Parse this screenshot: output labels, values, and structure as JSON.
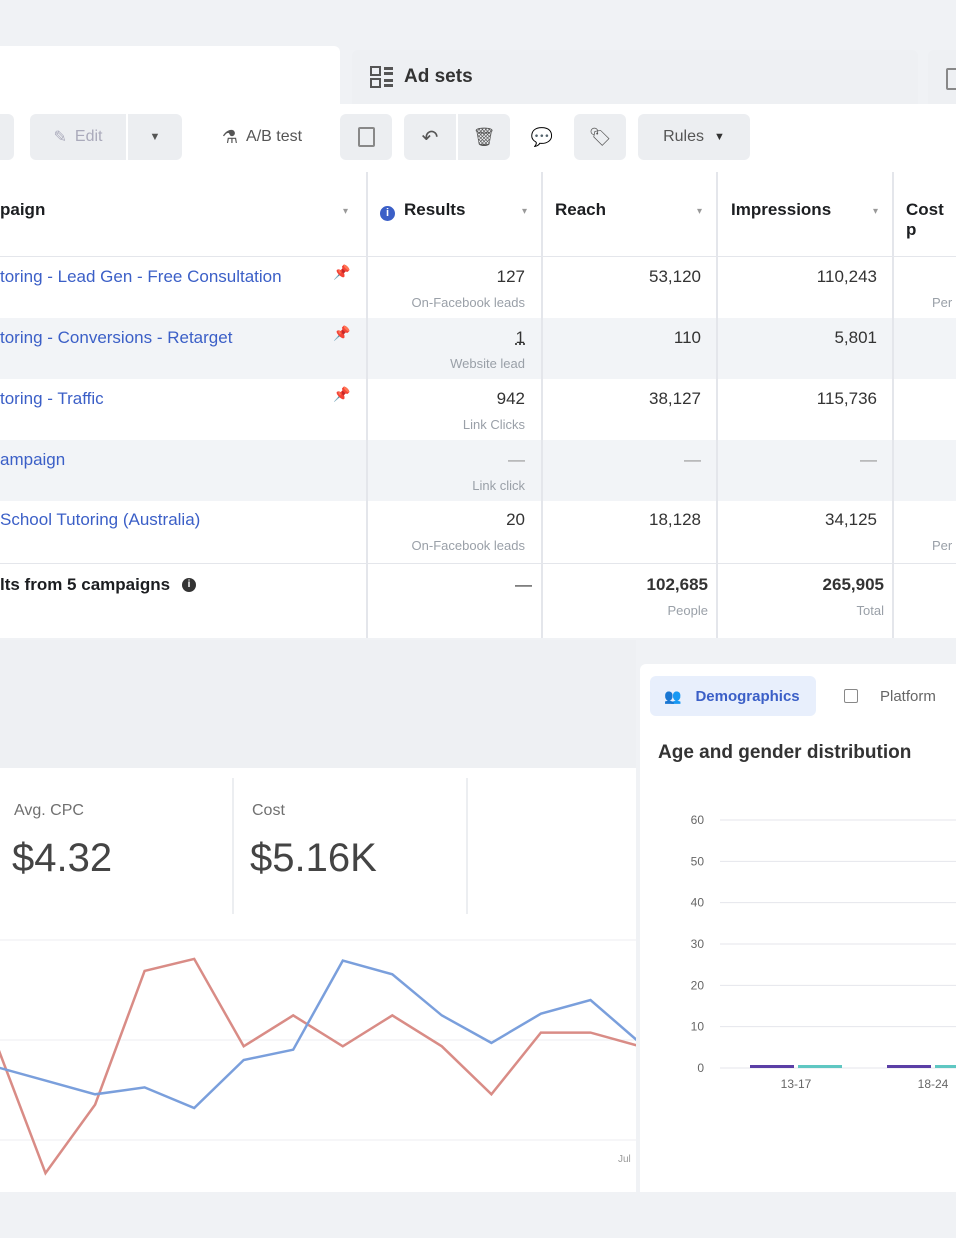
{
  "tabs": {
    "adsets_label": "Ad sets"
  },
  "toolbar": {
    "edit_label": "Edit",
    "ab_test_label": "A/B test",
    "rules_label": "Rules"
  },
  "table": {
    "columns": {
      "campaign": "paign",
      "results": "Results",
      "reach": "Reach",
      "impressions": "Impressions",
      "cost": "Cost p"
    },
    "rows": [
      {
        "campaign": "toring - Lead Gen - Free Consultation",
        "results": "127",
        "results_sub": "On-Facebook leads",
        "reach": "53,120",
        "impressions": "110,243",
        "cost_sub": "Per"
      },
      {
        "campaign": "toring - Conversions - Retarget",
        "results": "1",
        "results_sub": "Website lead",
        "reach": "110",
        "impressions": "5,801",
        "cost_sub": ""
      },
      {
        "campaign": "toring - Traffic",
        "results": "942",
        "results_sub": "Link Clicks",
        "reach": "38,127",
        "impressions": "115,736",
        "cost_sub": ""
      },
      {
        "campaign": "ampaign",
        "results": "—",
        "results_sub": "Link click",
        "reach": "—",
        "impressions": "—",
        "cost_sub": ""
      },
      {
        "campaign": "School Tutoring (Australia)",
        "results": "20",
        "results_sub": "On-Facebook leads",
        "reach": "18,128",
        "impressions": "34,125",
        "cost_sub": "Per"
      }
    ],
    "summary": {
      "label": "lts from 5 campaigns",
      "results": "—",
      "reach": "102,685",
      "reach_sub": "People",
      "impressions": "265,905",
      "impressions_sub": "Total"
    }
  },
  "metrics": [
    {
      "label": "Avg. CPC",
      "value": "$4.32"
    },
    {
      "label": "Cost",
      "value": "$5.16K"
    }
  ],
  "line_chart_data": {
    "type": "line",
    "series": [
      {
        "color": "#d98c86",
        "values": [
          1180,
          1104,
          1144,
          1222,
          1229,
          1178,
          1196,
          1178,
          1196,
          1178,
          1150,
          1186,
          1186,
          1178
        ]
      },
      {
        "color": "#7a9fdc",
        "values": [
          1166,
          1158,
          1150,
          1154,
          1142,
          1170,
          1176,
          1228,
          1220,
          1196,
          1180,
          1197,
          1205,
          1180
        ]
      }
    ],
    "x_label_tail": "Jul"
  },
  "right_panel": {
    "tab_demographics": "Demographics",
    "tab_platform": "Platform",
    "title": "Age and gender distribution"
  },
  "chart_data": {
    "type": "bar",
    "title": "Age and gender distribution",
    "categories": [
      "13-17",
      "18-24"
    ],
    "series": [
      {
        "color": "#5b3fa6",
        "values": [
          0.5,
          0.5
        ]
      },
      {
        "color": "#5fc7c2",
        "values": [
          0.5,
          0.5
        ]
      }
    ],
    "yticks": [
      0,
      10,
      20,
      30,
      40,
      50,
      60
    ],
    "ylim": [
      0,
      60
    ],
    "grid": true
  }
}
